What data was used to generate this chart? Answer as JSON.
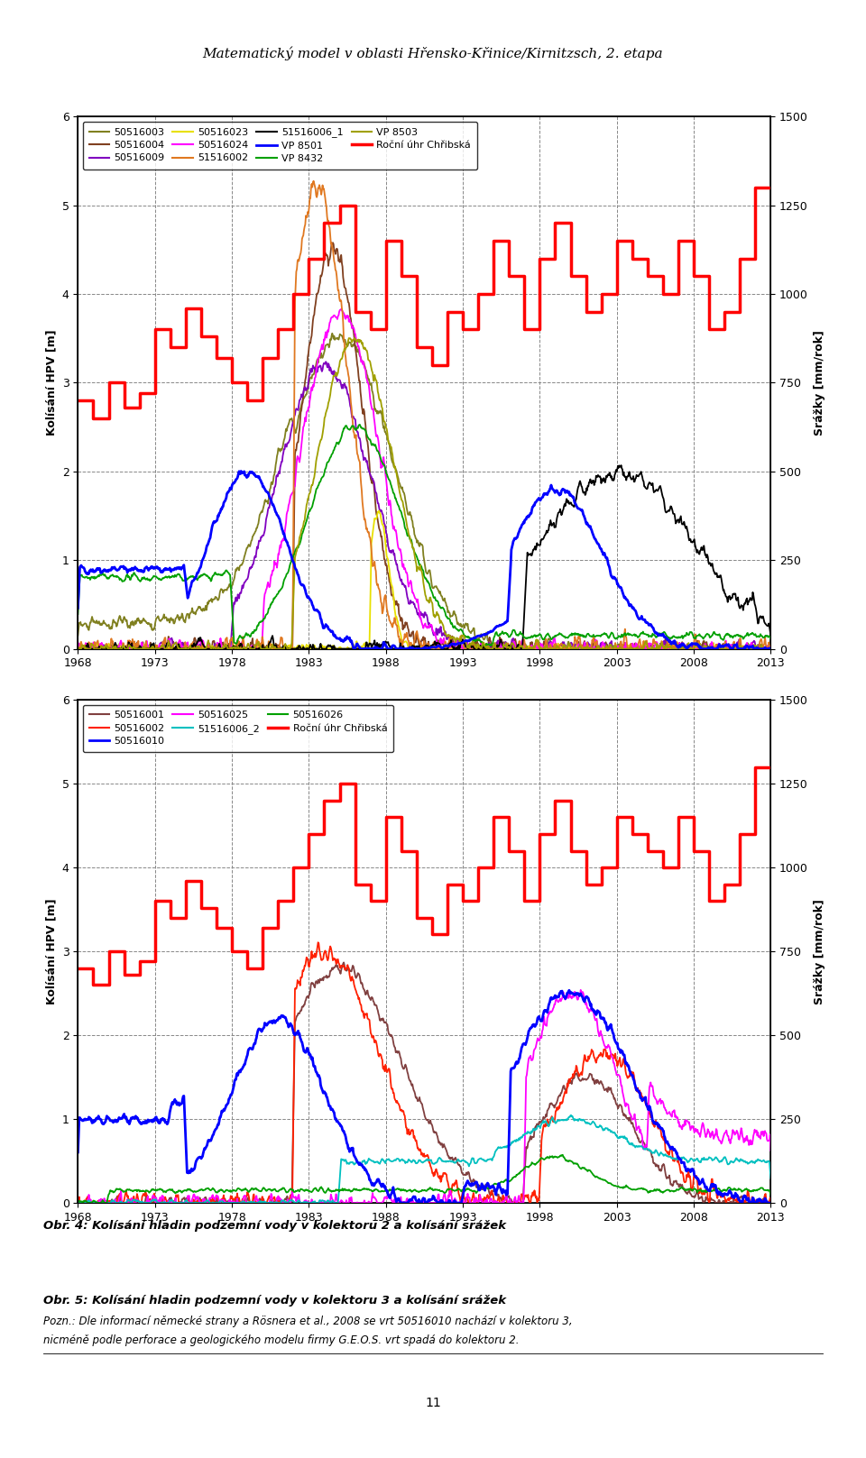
{
  "page_title": "Matematický model v oblasti Hřensko-Křinice/Kirnitzsch, 2. etapa",
  "caption1": "Obr. 4: Kolísání hladin podzemní vody v kolektoru 2 a kolísání srážek",
  "caption2": "Obr. 5: Kolísání hladin podzemní vody v kolektoru 3 a kolísání srážek",
  "caption2_note": "Pozn.: Dle informací německé strany a Rösnera et al., 2008 se vrt 50516010 nachází v kolektoru 3,",
  "caption2_note2": "nicméně podle perforace a geologického modelu firmy G.E.O.S. vrt spadá do kolektoru 2.",
  "ylabel_left": "Kolísání HPV [m]",
  "ylabel_right": "Srážky [mm/rok]",
  "xmin": 1968,
  "xmax": 2013,
  "xticks": [
    1968,
    1973,
    1978,
    1983,
    1988,
    1993,
    1998,
    2003,
    2008,
    2013
  ],
  "ylim_left": [
    0,
    6
  ],
  "ylim_right": [
    0,
    1500
  ],
  "yticks_left": [
    0,
    1,
    2,
    3,
    4,
    5,
    6
  ],
  "yticks_right": [
    0,
    250,
    500,
    750,
    1000,
    1250,
    1500
  ],
  "chart1_legend": [
    {
      "label": "50516003",
      "color": "#808020",
      "lw": 1.5
    },
    {
      "label": "50516004",
      "color": "#804020",
      "lw": 1.5
    },
    {
      "label": "50516009",
      "color": "#8000c0",
      "lw": 1.5
    },
    {
      "label": "50516023",
      "color": "#e8e000",
      "lw": 1.5
    },
    {
      "label": "50516024",
      "color": "#ff00ff",
      "lw": 1.5
    },
    {
      "label": "51516002",
      "color": "#e07820",
      "lw": 1.5
    },
    {
      "label": "51516006_1",
      "color": "#000000",
      "lw": 1.5
    },
    {
      "label": "VP 8501",
      "color": "#0000ff",
      "lw": 2.0
    },
    {
      "label": "VP 8432",
      "color": "#00a000",
      "lw": 1.5
    },
    {
      "label": "VP 8503",
      "color": "#a0a000",
      "lw": 1.5
    },
    {
      "label": "Roční úhr Chřibská",
      "color": "#ff0000",
      "lw": 2.5
    }
  ],
  "chart2_legend": [
    {
      "label": "50516001",
      "color": "#804040",
      "lw": 1.5
    },
    {
      "label": "50516002",
      "color": "#ff2000",
      "lw": 1.5
    },
    {
      "label": "50516010",
      "color": "#0000ff",
      "lw": 2.0
    },
    {
      "label": "50516025",
      "color": "#ff00ff",
      "lw": 1.5
    },
    {
      "label": "51516006_2",
      "color": "#00c0c0",
      "lw": 1.5
    },
    {
      "label": "50516026",
      "color": "#00a000",
      "lw": 1.5
    },
    {
      "label": "Roční úhr Chřibská",
      "color": "#ff0000",
      "lw": 2.5
    }
  ],
  "page_number": "11",
  "fig_bg": "#ffffff",
  "rain_years": [
    1968,
    1969,
    1970,
    1971,
    1972,
    1973,
    1974,
    1975,
    1976,
    1977,
    1978,
    1979,
    1980,
    1981,
    1982,
    1983,
    1984,
    1985,
    1986,
    1987,
    1988,
    1989,
    1990,
    1991,
    1992,
    1993,
    1994,
    1995,
    1996,
    1997,
    1998,
    1999,
    2000,
    2001,
    2002,
    2003,
    2004,
    2005,
    2006,
    2007,
    2008,
    2009,
    2010,
    2011,
    2012
  ],
  "rain_vals1": [
    700,
    650,
    750,
    680,
    720,
    900,
    850,
    960,
    880,
    820,
    750,
    700,
    820,
    900,
    1000,
    1100,
    1200,
    1250,
    950,
    900,
    1150,
    1050,
    850,
    800,
    950,
    900,
    1000,
    1150,
    1050,
    900,
    1100,
    1200,
    1050,
    950,
    1000,
    1150,
    1100,
    1050,
    1000,
    1150,
    1050,
    900,
    950,
    1100,
    1300
  ],
  "rain_vals2": [
    700,
    650,
    750,
    680,
    720,
    900,
    850,
    960,
    880,
    820,
    750,
    700,
    820,
    900,
    1000,
    1100,
    1200,
    1250,
    950,
    900,
    1150,
    1050,
    850,
    800,
    950,
    900,
    1000,
    1150,
    1050,
    900,
    1100,
    1200,
    1050,
    950,
    1000,
    1150,
    1100,
    1050,
    1000,
    1150,
    1050,
    900,
    950,
    1100,
    1300
  ]
}
